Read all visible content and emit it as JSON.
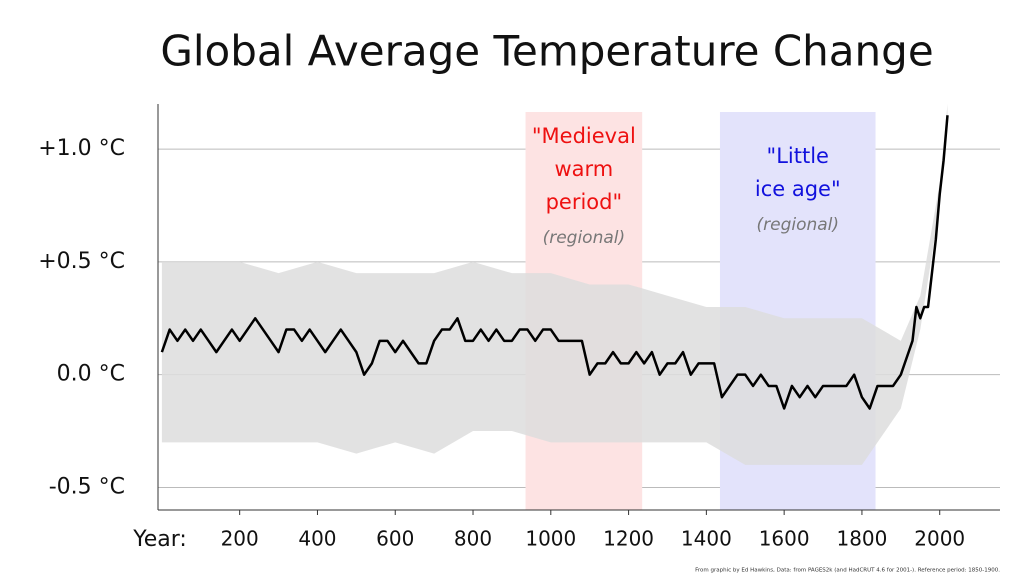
{
  "chart_data": {
    "type": "line",
    "title": "Global Average Temperature Change",
    "x_label": "Year:",
    "xlim": [
      -10,
      2155
    ],
    "ylim": [
      -0.6,
      1.2
    ],
    "xticks": [
      200,
      400,
      600,
      800,
      1000,
      1200,
      1400,
      1600,
      1800,
      2000
    ],
    "yticks": [
      {
        "value": -0.5,
        "label": "-0.5 °C"
      },
      {
        "value": 0,
        "label": "0.0 °C"
      },
      {
        "value": 0.5,
        "label": "+0.5 °C"
      },
      {
        "value": 1,
        "label": "+1.0 °C"
      }
    ],
    "grid": true,
    "color": "#000000",
    "band_color": "#dddddd",
    "x": [
      0,
      20,
      40,
      60,
      80,
      100,
      120,
      140,
      160,
      180,
      200,
      220,
      240,
      260,
      280,
      300,
      320,
      340,
      360,
      380,
      400,
      420,
      440,
      460,
      480,
      500,
      520,
      540,
      560,
      580,
      600,
      620,
      640,
      660,
      680,
      700,
      720,
      740,
      760,
      780,
      800,
      820,
      840,
      860,
      880,
      900,
      920,
      940,
      960,
      980,
      1000,
      1020,
      1040,
      1060,
      1080,
      1100,
      1120,
      1140,
      1160,
      1180,
      1200,
      1220,
      1240,
      1260,
      1280,
      1300,
      1320,
      1340,
      1360,
      1380,
      1400,
      1420,
      1440,
      1460,
      1480,
      1500,
      1520,
      1540,
      1560,
      1580,
      1600,
      1620,
      1640,
      1660,
      1680,
      1700,
      1720,
      1740,
      1760,
      1780,
      1800,
      1820,
      1840,
      1860,
      1880,
      1900,
      1910,
      1920,
      1930,
      1940,
      1950,
      1960,
      1970,
      1980,
      1990,
      2000,
      2010,
      2020
    ],
    "values": [
      0.1,
      0.2,
      0.15,
      0.2,
      0.15,
      0.2,
      0.15,
      0.1,
      0.15,
      0.2,
      0.15,
      0.2,
      0.25,
      0.2,
      0.15,
      0.1,
      0.2,
      0.2,
      0.15,
      0.2,
      0.15,
      0.1,
      0.15,
      0.2,
      0.15,
      0.1,
      0.0,
      0.05,
      0.15,
      0.15,
      0.1,
      0.15,
      0.1,
      0.05,
      0.05,
      0.15,
      0.2,
      0.2,
      0.25,
      0.15,
      0.15,
      0.2,
      0.15,
      0.2,
      0.15,
      0.15,
      0.2,
      0.2,
      0.15,
      0.2,
      0.2,
      0.15,
      0.15,
      0.15,
      0.15,
      0.0,
      0.05,
      0.05,
      0.1,
      0.05,
      0.05,
      0.1,
      0.05,
      0.1,
      0.0,
      0.05,
      0.05,
      0.1,
      0.0,
      0.05,
      0.05,
      0.05,
      -0.1,
      -0.05,
      0.0,
      0.0,
      -0.05,
      0.0,
      -0.05,
      -0.05,
      -0.15,
      -0.05,
      -0.1,
      -0.05,
      -0.1,
      -0.05,
      -0.05,
      -0.05,
      -0.05,
      0.0,
      -0.1,
      -0.15,
      -0.05,
      -0.05,
      -0.05,
      0.0,
      0.05,
      0.1,
      0.15,
      0.3,
      0.25,
      0.3,
      0.3,
      0.45,
      0.6,
      0.8,
      0.95,
      1.15
    ],
    "band": {
      "x": [
        0,
        100,
        200,
        300,
        400,
        500,
        600,
        700,
        800,
        900,
        1000,
        1100,
        1200,
        1300,
        1400,
        1500,
        1600,
        1700,
        1800,
        1900,
        1950,
        2000,
        2020
      ],
      "upper": [
        0.5,
        0.5,
        0.5,
        0.45,
        0.5,
        0.45,
        0.45,
        0.45,
        0.5,
        0.45,
        0.45,
        0.4,
        0.4,
        0.35,
        0.3,
        0.3,
        0.25,
        0.25,
        0.25,
        0.15,
        0.35,
        0.85,
        1.2
      ],
      "lower": [
        -0.3,
        -0.3,
        -0.3,
        -0.3,
        -0.3,
        -0.35,
        -0.3,
        -0.35,
        -0.25,
        -0.25,
        -0.3,
        -0.3,
        -0.3,
        -0.3,
        -0.3,
        -0.4,
        -0.4,
        -0.4,
        -0.4,
        -0.15,
        0.2,
        0.75,
        1.1
      ]
    },
    "periods": [
      {
        "range": [
          935,
          1235
        ],
        "color": "#fde3e3",
        "text_color": "#ee1111",
        "label_lines": [
          "\"Medieval",
          "warm",
          "period\""
        ],
        "note": "(regional)"
      },
      {
        "range": [
          1435,
          1835
        ],
        "color": "#e3e3fb",
        "text_color": "#1111dd",
        "label_lines": [
          "\"Little",
          "ice age\""
        ],
        "note": "(regional)"
      }
    ],
    "footnote": "From graphic by Ed Hawkins,    Data: from PAGES2k (and HadCRUT 4.6 for 2001-).    Reference period: 1850-1900."
  }
}
